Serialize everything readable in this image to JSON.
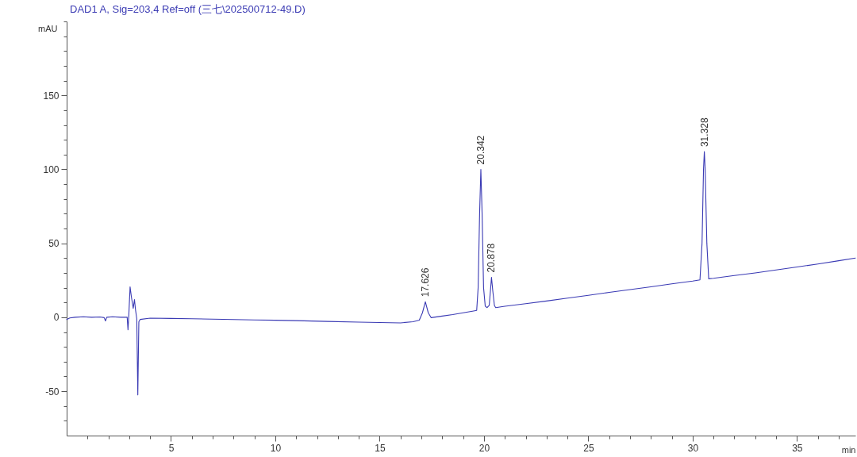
{
  "chart_data": {
    "type": "line",
    "title": "DAD1 A, Sig=203,4 Ref=off (三七\\202500712-49.D)",
    "xlabel": "min",
    "ylabel": "mAU",
    "x": [
      0,
      0.15,
      0.4,
      0.8,
      1.2,
      1.6,
      1.8,
      1.86,
      1.92,
      2.2,
      2.6,
      2.9,
      2.94,
      2.98,
      3.04,
      3.1,
      3.19,
      3.25,
      3.3,
      3.36,
      3.41,
      3.46,
      3.52,
      4,
      5,
      6,
      7.5,
      9,
      10,
      11,
      12.5,
      14,
      15,
      16,
      16.6,
      16.9,
      17.05,
      17.19,
      17.33,
      17.47,
      18,
      18.5,
      19,
      19.5,
      19.65,
      19.72,
      19.79,
      19.85,
      19.91,
      19.98,
      20.06,
      20.15,
      20.25,
      20.31,
      20.36,
      20.42,
      20.5,
      20.56,
      21,
      22,
      23,
      24,
      25,
      26,
      27,
      28,
      29,
      30,
      30.35,
      30.45,
      30.52,
      30.56,
      30.6,
      30.68,
      30.77,
      31,
      32,
      33,
      34,
      35,
      36,
      37,
      37.8
    ],
    "series": [
      {
        "color": "#3a3ab4",
        "values": [
          -1.5,
          -0.5,
          0,
          0.3,
          0,
          0.2,
          -0.3,
          -2.5,
          0,
          0.3,
          0,
          0,
          -8.5,
          2,
          20.5,
          14,
          6,
          12,
          5,
          -1,
          -52.5,
          -3,
          -1.5,
          -0.6,
          -0.8,
          -1,
          -1.4,
          -1.8,
          -2,
          -2.3,
          -2.8,
          -3.3,
          -3.6,
          -3.8,
          -3,
          -2,
          3,
          10.5,
          3,
          -0.3,
          0.8,
          1.8,
          3,
          4.2,
          4.6,
          20,
          70,
          100,
          70,
          20,
          7.5,
          6.5,
          8,
          18,
          27,
          18,
          8,
          6.5,
          7.4,
          9.2,
          11,
          12.9,
          14.8,
          16.8,
          18.7,
          20.6,
          22.6,
          24.5,
          25.3,
          50,
          100,
          112,
          100,
          50,
          26,
          26.3,
          28.2,
          30,
          32,
          34,
          36,
          38.2,
          40
        ]
      }
    ],
    "annotations": [
      {
        "text": "17.626",
        "x": 17.19,
        "y": 10.5
      },
      {
        "text": "20.342",
        "x": 19.85,
        "y": 100
      },
      {
        "text": "20.878",
        "x": 20.36,
        "y": 27
      },
      {
        "text": "31.328",
        "x": 30.56,
        "y": 112
      }
    ],
    "xlim": [
      0,
      37.8
    ],
    "ylim": [
      -80,
      200
    ],
    "xticks": [
      {
        "value": 1,
        "label": null
      },
      {
        "value": 2,
        "label": null
      },
      {
        "value": 3,
        "label": null
      },
      {
        "value": 4,
        "label": null
      },
      5,
      {
        "value": 6,
        "label": null
      },
      {
        "value": 7,
        "label": null
      },
      {
        "value": 8,
        "label": null
      },
      {
        "value": 9,
        "label": null
      },
      10,
      {
        "value": 11,
        "label": null
      },
      {
        "value": 12,
        "label": null
      },
      {
        "value": 13,
        "label": null
      },
      {
        "value": 14,
        "label": null
      },
      15,
      {
        "value": 16,
        "label": null
      },
      {
        "value": 17,
        "label": null
      },
      {
        "value": 18,
        "label": null
      },
      {
        "value": 19,
        "label": null
      },
      20,
      {
        "value": 21,
        "label": null
      },
      {
        "value": 22,
        "label": null
      },
      {
        "value": 23,
        "label": null
      },
      {
        "value": 24,
        "label": null
      },
      25,
      {
        "value": 26,
        "label": null
      },
      {
        "value": 27,
        "label": null
      },
      {
        "value": 28,
        "label": null
      },
      {
        "value": 29,
        "label": null
      },
      30,
      {
        "value": 31,
        "label": null
      },
      {
        "value": 32,
        "label": null
      },
      {
        "value": 33,
        "label": null
      },
      {
        "value": 34,
        "label": null
      },
      35,
      {
        "value": 36,
        "label": null
      },
      {
        "value": 37,
        "label": null
      }
    ],
    "yticks": [
      {
        "value": -70,
        "label": null
      },
      {
        "value": -60,
        "label": null
      },
      -50,
      {
        "value": -40,
        "label": null
      },
      {
        "value": -30,
        "label": null
      },
      {
        "value": -20,
        "label": null
      },
      {
        "value": -10,
        "label": null
      },
      0,
      {
        "value": 10,
        "label": null
      },
      {
        "value": 20,
        "label": null
      },
      {
        "value": 30,
        "label": null
      },
      {
        "value": 40,
        "label": null
      },
      50,
      {
        "value": 60,
        "label": null
      },
      {
        "value": 70,
        "label": null
      },
      {
        "value": 80,
        "label": null
      },
      {
        "value": 90,
        "label": null
      },
      100,
      {
        "value": 110,
        "label": null
      },
      {
        "value": 120,
        "label": null
      },
      {
        "value": 130,
        "label": null
      },
      {
        "value": 140,
        "label": null
      },
      150,
      {
        "value": 160,
        "label": null
      },
      {
        "value": 170,
        "label": null
      },
      {
        "value": 180,
        "label": null
      },
      {
        "value": 190,
        "label": null
      },
      {
        "value": 200,
        "label": null
      }
    ],
    "grid": false,
    "line_style": "solid"
  }
}
